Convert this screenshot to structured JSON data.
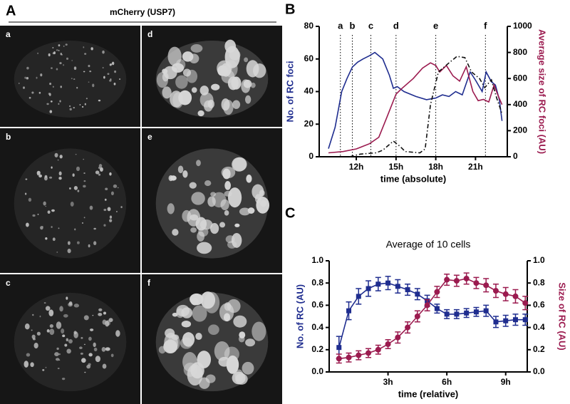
{
  "panel_a": {
    "panel_label": "A",
    "title": "mCherry (USP7)",
    "images": [
      "a",
      "b",
      "c",
      "d",
      "e",
      "f"
    ]
  },
  "chart_data": [
    {
      "type": "line",
      "panel_label": "B",
      "xlabel": "time (absolute)",
      "ylabel": "No. of RC foci",
      "y2label": "Average size of RC foci (AU)",
      "xlim": [
        9.2,
        23.4
      ],
      "xticks": [
        {
          "value": 12,
          "label": "12h"
        },
        {
          "value": 15,
          "label": "15h"
        },
        {
          "value": 18,
          "label": "18h"
        },
        {
          "value": 21,
          "label": "21h"
        }
      ],
      "ylim": [
        0,
        80
      ],
      "yticks": [
        0,
        20,
        40,
        60,
        80
      ],
      "y2lim": [
        0,
        1000
      ],
      "y2ticks": [
        0,
        200,
        400,
        600,
        800,
        1000
      ],
      "ylabel_color": "#1f2d8f",
      "y2label_color": "#9b1b4f",
      "markers": [
        {
          "label": "a",
          "x": 10.8
        },
        {
          "label": "b",
          "x": 11.7
        },
        {
          "label": "c",
          "x": 13.1
        },
        {
          "label": "d",
          "x": 15
        },
        {
          "label": "e",
          "x": 18
        },
        {
          "label": "f",
          "x": 21.75
        }
      ],
      "series": [
        {
          "color": "#1f2d8f",
          "x": [
            9.9,
            10.4,
            10.9,
            11.3,
            11.7,
            12.1,
            12.5,
            13,
            13.4,
            14,
            14.5,
            14.8,
            15.1,
            15.6,
            16.5,
            17.3,
            18,
            18.5,
            19,
            19.5,
            20,
            20.6,
            21,
            21.5,
            21.8,
            22.2,
            22.5,
            22.8,
            23
          ],
          "values": [
            5,
            18,
            40,
            48,
            55,
            58,
            60,
            62,
            64,
            60,
            50,
            42,
            43,
            40,
            37,
            35,
            36,
            38,
            37,
            40,
            38,
            52,
            47,
            40,
            52,
            46,
            44,
            35,
            22
          ]
        },
        {
          "color": "#9b1b4f",
          "axis": "y2",
          "x": [
            9.9,
            11,
            12,
            13,
            13.7,
            14.3,
            15,
            15.4,
            16.3,
            17,
            17.6,
            18,
            18.3,
            18.8,
            19.3,
            19.8,
            20.3,
            20.8,
            21.2,
            21.6,
            22,
            22.4,
            22.7,
            23
          ],
          "values": [
            30,
            40,
            60,
            100,
            150,
            300,
            480,
            520,
            600,
            680,
            720,
            700,
            650,
            700,
            620,
            580,
            690,
            500,
            430,
            440,
            420,
            550,
            470,
            400
          ]
        },
        {
          "color": "#111111",
          "axis": "y2",
          "linestyle": "dashdot",
          "x": [
            11.5,
            12.3,
            13.5,
            14,
            14.8,
            15.3,
            15.7,
            16.8,
            17.2,
            17.6,
            18.2,
            19,
            19.6,
            20.2,
            20.7,
            21.3,
            21.7,
            22.2,
            22.6,
            23
          ],
          "values": [
            0,
            20,
            30,
            50,
            120,
            80,
            40,
            30,
            60,
            400,
            650,
            720,
            770,
            760,
            650,
            600,
            530,
            590,
            450,
            330
          ]
        }
      ]
    },
    {
      "type": "line",
      "panel_label": "C",
      "title": "Average of 10 cells",
      "xlabel": "time (relative)",
      "ylabel": "No. of RC (AU)",
      "y2label": "Size of RC (AU)",
      "xlim": [
        0,
        10.1
      ],
      "xticks": [
        {
          "value": 3,
          "label": "3h"
        },
        {
          "value": 6,
          "label": "6h"
        },
        {
          "value": 9,
          "label": "9h"
        }
      ],
      "ylim": [
        0,
        1
      ],
      "yticks": [
        {
          "value": 0,
          "label": "0.0"
        },
        0.2,
        0.4,
        0.6,
        0.8,
        {
          "value": 1,
          "label": "1.0"
        }
      ],
      "y2lim": [
        0,
        1
      ],
      "y2ticks": [
        {
          "value": 0,
          "label": "0.0"
        },
        0.2,
        0.4,
        0.6,
        0.8,
        {
          "value": 1,
          "label": "1.0"
        }
      ],
      "ylabel_color": "#1f2d8f",
      "y2label_color": "#9b1b4f",
      "series": [
        {
          "color": "#1f2d8f",
          "marker": "square",
          "x": [
            0.5,
            1,
            1.5,
            2,
            2.5,
            3,
            3.5,
            4,
            4.5,
            5,
            5.5,
            6,
            6.5,
            7,
            7.5,
            8,
            8.5,
            9,
            9.5,
            10
          ],
          "values": [
            0.22,
            0.55,
            0.68,
            0.75,
            0.79,
            0.8,
            0.77,
            0.74,
            0.7,
            0.64,
            0.57,
            0.52,
            0.52,
            0.53,
            0.54,
            0.55,
            0.45,
            0.46,
            0.47,
            0.47
          ],
          "errors": [
            0.1,
            0.08,
            0.07,
            0.07,
            0.06,
            0.06,
            0.06,
            0.05,
            0.05,
            0.05,
            0.04,
            0.04,
            0.04,
            0.04,
            0.04,
            0.05,
            0.05,
            0.05,
            0.05,
            0.05
          ]
        },
        {
          "color": "#9b1b4f",
          "marker": "circle",
          "axis": "y2",
          "x": [
            0.5,
            1,
            1.5,
            2,
            2.5,
            3,
            3.5,
            4,
            4.5,
            5,
            5.5,
            6,
            6.5,
            7,
            7.5,
            8,
            8.5,
            9,
            9.5,
            10
          ],
          "values": [
            0.12,
            0.13,
            0.15,
            0.17,
            0.2,
            0.25,
            0.31,
            0.4,
            0.5,
            0.6,
            0.72,
            0.83,
            0.82,
            0.84,
            0.8,
            0.78,
            0.73,
            0.7,
            0.68,
            0.62
          ],
          "errors": [
            0.04,
            0.04,
            0.04,
            0.04,
            0.04,
            0.04,
            0.05,
            0.05,
            0.05,
            0.05,
            0.05,
            0.05,
            0.05,
            0.05,
            0.05,
            0.06,
            0.06,
            0.06,
            0.06,
            0.06
          ]
        }
      ]
    }
  ]
}
